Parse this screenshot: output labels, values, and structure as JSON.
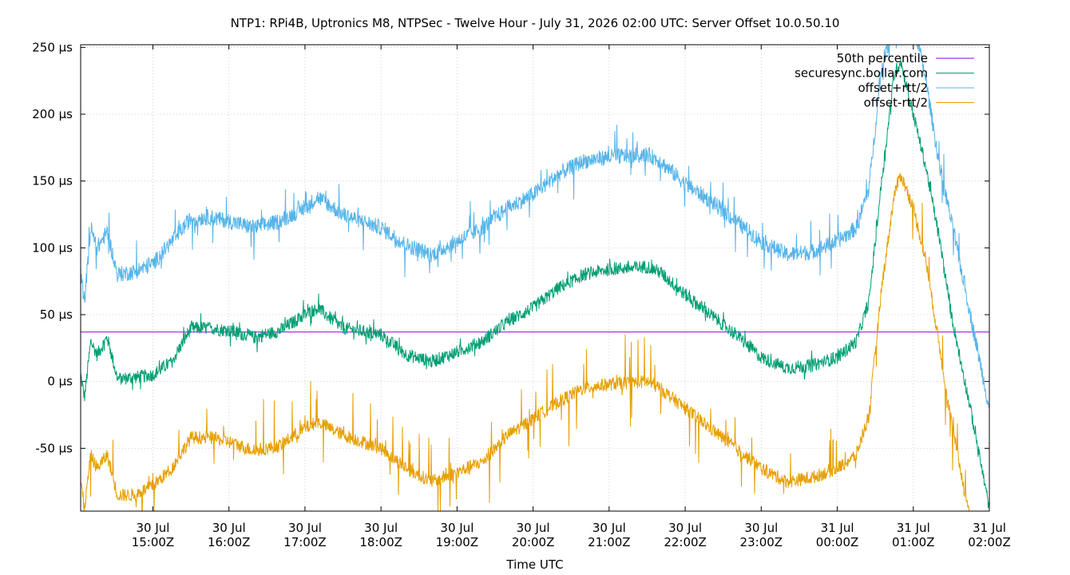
{
  "chart_data": {
    "type": "line",
    "title": "NTP1: RPi4B, Uptronics M8, NTPSec - Twelve Hour - July 31, 2026 02:00 UTC: Server Offset 10.0.50.10",
    "xlabel": "Time UTC",
    "ylabel": "",
    "y_unit": "µs",
    "ylim": [
      -97,
      252
    ],
    "xlim": [
      "2026-07-30T14:03:00Z",
      "2026-07-31T02:00:00Z"
    ],
    "grid": true,
    "legend_position": "top-right",
    "y_ticks": [
      {
        "value": 250,
        "label": "250 µs"
      },
      {
        "value": 200,
        "label": "200 µs"
      },
      {
        "value": 150,
        "label": "150 µs"
      },
      {
        "value": 100,
        "label": "100 µs"
      },
      {
        "value": 50,
        "label": "50 µs"
      },
      {
        "value": 0,
        "label": "0 µs"
      },
      {
        "value": -50,
        "label": "-50 µs"
      }
    ],
    "x_ticks": [
      {
        "time": "2026-07-30T15:00:00Z",
        "date_label": "30 Jul",
        "time_label": "15:00Z"
      },
      {
        "time": "2026-07-30T16:00:00Z",
        "date_label": "30 Jul",
        "time_label": "16:00Z"
      },
      {
        "time": "2026-07-30T17:00:00Z",
        "date_label": "30 Jul",
        "time_label": "17:00Z"
      },
      {
        "time": "2026-07-30T18:00:00Z",
        "date_label": "30 Jul",
        "time_label": "18:00Z"
      },
      {
        "time": "2026-07-30T19:00:00Z",
        "date_label": "30 Jul",
        "time_label": "19:00Z"
      },
      {
        "time": "2026-07-30T20:00:00Z",
        "date_label": "30 Jul",
        "time_label": "20:00Z"
      },
      {
        "time": "2026-07-30T21:00:00Z",
        "date_label": "30 Jul",
        "time_label": "21:00Z"
      },
      {
        "time": "2026-07-30T22:00:00Z",
        "date_label": "30 Jul",
        "time_label": "22:00Z"
      },
      {
        "time": "2026-07-30T23:00:00Z",
        "date_label": "30 Jul",
        "time_label": "23:00Z"
      },
      {
        "time": "2026-07-31T00:00:00Z",
        "date_label": "31 Jul",
        "time_label": "00:00Z"
      },
      {
        "time": "2026-07-31T01:00:00Z",
        "date_label": "31 Jul",
        "time_label": "01:00Z"
      },
      {
        "time": "2026-07-31T02:00:00Z",
        "date_label": "31 Jul",
        "time_label": "02:00Z"
      }
    ],
    "series": [
      {
        "name": "50th percentile",
        "color": "#9400d3",
        "style": "horizontal",
        "y": 37
      },
      {
        "name": "securesync.bollar.com",
        "color": "#009e73",
        "style": "noisy",
        "noise_amplitude": 5,
        "spike_amplitude": 8,
        "points": [
          [
            "2026-07-30T14:03:00Z",
            5
          ],
          [
            "2026-07-30T14:06:00Z",
            -12
          ],
          [
            "2026-07-30T14:11:00Z",
            30
          ],
          [
            "2026-07-30T14:16:00Z",
            20
          ],
          [
            "2026-07-30T14:24:00Z",
            33
          ],
          [
            "2026-07-30T14:32:00Z",
            2
          ],
          [
            "2026-07-30T14:45:00Z",
            3
          ],
          [
            "2026-07-30T15:00:00Z",
            5
          ],
          [
            "2026-07-30T15:15:00Z",
            15
          ],
          [
            "2026-07-30T15:30:00Z",
            40
          ],
          [
            "2026-07-30T15:45:00Z",
            40
          ],
          [
            "2026-07-30T16:00:00Z",
            38
          ],
          [
            "2026-07-30T16:20:00Z",
            33
          ],
          [
            "2026-07-30T16:40:00Z",
            38
          ],
          [
            "2026-07-30T17:00:00Z",
            50
          ],
          [
            "2026-07-30T17:10:00Z",
            55
          ],
          [
            "2026-07-30T17:30:00Z",
            40
          ],
          [
            "2026-07-30T18:00:00Z",
            35
          ],
          [
            "2026-07-30T18:20:00Z",
            20
          ],
          [
            "2026-07-30T18:40:00Z",
            15
          ],
          [
            "2026-07-30T19:00:00Z",
            22
          ],
          [
            "2026-07-30T19:20:00Z",
            30
          ],
          [
            "2026-07-30T19:40:00Z",
            45
          ],
          [
            "2026-07-30T20:00:00Z",
            55
          ],
          [
            "2026-07-30T20:20:00Z",
            70
          ],
          [
            "2026-07-30T20:40:00Z",
            80
          ],
          [
            "2026-07-30T21:00:00Z",
            84
          ],
          [
            "2026-07-30T21:30:00Z",
            86
          ],
          [
            "2026-07-30T21:40:00Z",
            82
          ],
          [
            "2026-07-30T22:00:00Z",
            65
          ],
          [
            "2026-07-30T22:20:00Z",
            50
          ],
          [
            "2026-07-30T22:40:00Z",
            35
          ],
          [
            "2026-07-30T23:00:00Z",
            18
          ],
          [
            "2026-07-30T23:20:00Z",
            10
          ],
          [
            "2026-07-30T23:40:00Z",
            12
          ],
          [
            "2026-07-31T00:00:00Z",
            18
          ],
          [
            "2026-07-31T00:15:00Z",
            30
          ],
          [
            "2026-07-31T00:25:00Z",
            60
          ],
          [
            "2026-07-31T00:35:00Z",
            150
          ],
          [
            "2026-07-31T00:45:00Z",
            230
          ],
          [
            "2026-07-31T00:50:00Z",
            240
          ],
          [
            "2026-07-31T01:00:00Z",
            200
          ],
          [
            "2026-07-31T01:10:00Z",
            160
          ],
          [
            "2026-07-31T01:20:00Z",
            110
          ],
          [
            "2026-07-31T01:30:00Z",
            50
          ],
          [
            "2026-07-31T01:45:00Z",
            -20
          ],
          [
            "2026-07-31T02:00:00Z",
            -95
          ]
        ]
      },
      {
        "name": "offset+rtt/2",
        "color": "#56b4e9",
        "style": "noisy",
        "noise_amplitude": 6,
        "spike_amplitude": 22,
        "points": [
          [
            "2026-07-30T14:03:00Z",
            80
          ],
          [
            "2026-07-30T14:06:00Z",
            60
          ],
          [
            "2026-07-30T14:11:00Z",
            115
          ],
          [
            "2026-07-30T14:16:00Z",
            100
          ],
          [
            "2026-07-30T14:24:00Z",
            112
          ],
          [
            "2026-07-30T14:32:00Z",
            80
          ],
          [
            "2026-07-30T14:45:00Z",
            82
          ],
          [
            "2026-07-30T15:00:00Z",
            88
          ],
          [
            "2026-07-30T15:15:00Z",
            105
          ],
          [
            "2026-07-30T15:30:00Z",
            122
          ],
          [
            "2026-07-30T15:45:00Z",
            123
          ],
          [
            "2026-07-30T16:00:00Z",
            120
          ],
          [
            "2026-07-30T16:20:00Z",
            115
          ],
          [
            "2026-07-30T16:40:00Z",
            120
          ],
          [
            "2026-07-30T17:00:00Z",
            130
          ],
          [
            "2026-07-30T17:10:00Z",
            138
          ],
          [
            "2026-07-30T17:30:00Z",
            125
          ],
          [
            "2026-07-30T18:00:00Z",
            115
          ],
          [
            "2026-07-30T18:20:00Z",
            102
          ],
          [
            "2026-07-30T18:40:00Z",
            95
          ],
          [
            "2026-07-30T19:00:00Z",
            105
          ],
          [
            "2026-07-30T19:20:00Z",
            115
          ],
          [
            "2026-07-30T19:40:00Z",
            130
          ],
          [
            "2026-07-30T20:00:00Z",
            140
          ],
          [
            "2026-07-30T20:20:00Z",
            155
          ],
          [
            "2026-07-30T20:40:00Z",
            165
          ],
          [
            "2026-07-30T21:00:00Z",
            168
          ],
          [
            "2026-07-30T21:30:00Z",
            170
          ],
          [
            "2026-07-30T21:40:00Z",
            165
          ],
          [
            "2026-07-30T22:00:00Z",
            148
          ],
          [
            "2026-07-30T22:20:00Z",
            135
          ],
          [
            "2026-07-30T22:40:00Z",
            120
          ],
          [
            "2026-07-30T23:00:00Z",
            105
          ],
          [
            "2026-07-30T23:20:00Z",
            95
          ],
          [
            "2026-07-30T23:40:00Z",
            97
          ],
          [
            "2026-07-31T00:00:00Z",
            105
          ],
          [
            "2026-07-31T00:15:00Z",
            115
          ],
          [
            "2026-07-31T00:25:00Z",
            145
          ],
          [
            "2026-07-31T00:35:00Z",
            235
          ],
          [
            "2026-07-31T00:45:00Z",
            270
          ],
          [
            "2026-07-31T00:50:00Z",
            280
          ],
          [
            "2026-07-31T01:00:00Z",
            270
          ],
          [
            "2026-07-31T01:10:00Z",
            225
          ],
          [
            "2026-07-31T01:20:00Z",
            165
          ],
          [
            "2026-07-31T01:30:00Z",
            120
          ],
          [
            "2026-07-31T01:45:00Z",
            50
          ],
          [
            "2026-07-31T02:00:00Z",
            -20
          ]
        ]
      },
      {
        "name": "offset-rtt/2",
        "color": "#e69f00",
        "style": "noisy",
        "noise_amplitude": 5,
        "spike_amplitude": 35,
        "points": [
          [
            "2026-07-30T14:03:00Z",
            -75
          ],
          [
            "2026-07-30T14:06:00Z",
            -95
          ],
          [
            "2026-07-30T14:11:00Z",
            -55
          ],
          [
            "2026-07-30T14:16:00Z",
            -65
          ],
          [
            "2026-07-30T14:24:00Z",
            -55
          ],
          [
            "2026-07-30T14:32:00Z",
            -85
          ],
          [
            "2026-07-30T14:45:00Z",
            -85
          ],
          [
            "2026-07-30T15:00:00Z",
            -78
          ],
          [
            "2026-07-30T15:15:00Z",
            -65
          ],
          [
            "2026-07-30T15:30:00Z",
            -42
          ],
          [
            "2026-07-30T15:45:00Z",
            -42
          ],
          [
            "2026-07-30T16:00:00Z",
            -45
          ],
          [
            "2026-07-30T16:20:00Z",
            -52
          ],
          [
            "2026-07-30T16:40:00Z",
            -48
          ],
          [
            "2026-07-30T17:00:00Z",
            -35
          ],
          [
            "2026-07-30T17:10:00Z",
            -30
          ],
          [
            "2026-07-30T17:30:00Z",
            -40
          ],
          [
            "2026-07-30T18:00:00Z",
            -50
          ],
          [
            "2026-07-30T18:20:00Z",
            -65
          ],
          [
            "2026-07-30T18:40:00Z",
            -75
          ],
          [
            "2026-07-30T19:00:00Z",
            -68
          ],
          [
            "2026-07-30T19:20:00Z",
            -60
          ],
          [
            "2026-07-30T19:40:00Z",
            -40
          ],
          [
            "2026-07-30T20:00:00Z",
            -28
          ],
          [
            "2026-07-30T20:20:00Z",
            -15
          ],
          [
            "2026-07-30T20:40:00Z",
            -5
          ],
          [
            "2026-07-30T21:00:00Z",
            -2
          ],
          [
            "2026-07-30T21:30:00Z",
            0
          ],
          [
            "2026-07-30T21:40:00Z",
            -5
          ],
          [
            "2026-07-30T22:00:00Z",
            -20
          ],
          [
            "2026-07-30T22:20:00Z",
            -35
          ],
          [
            "2026-07-30T22:40:00Z",
            -50
          ],
          [
            "2026-07-30T23:00:00Z",
            -65
          ],
          [
            "2026-07-30T23:20:00Z",
            -75
          ],
          [
            "2026-07-30T23:40:00Z",
            -72
          ],
          [
            "2026-07-31T00:00:00Z",
            -65
          ],
          [
            "2026-07-31T00:15:00Z",
            -55
          ],
          [
            "2026-07-31T00:25:00Z",
            -25
          ],
          [
            "2026-07-31T00:35:00Z",
            70
          ],
          [
            "2026-07-31T00:45:00Z",
            140
          ],
          [
            "2026-07-31T00:50:00Z",
            155
          ],
          [
            "2026-07-31T01:00:00Z",
            130
          ],
          [
            "2026-07-31T01:10:00Z",
            90
          ],
          [
            "2026-07-31T01:20:00Z",
            30
          ],
          [
            "2026-07-31T01:30:00Z",
            -30
          ],
          [
            "2026-07-31T01:40:00Z",
            -80
          ],
          [
            "2026-07-31T01:45:00Z",
            -100
          ]
        ]
      }
    ]
  }
}
